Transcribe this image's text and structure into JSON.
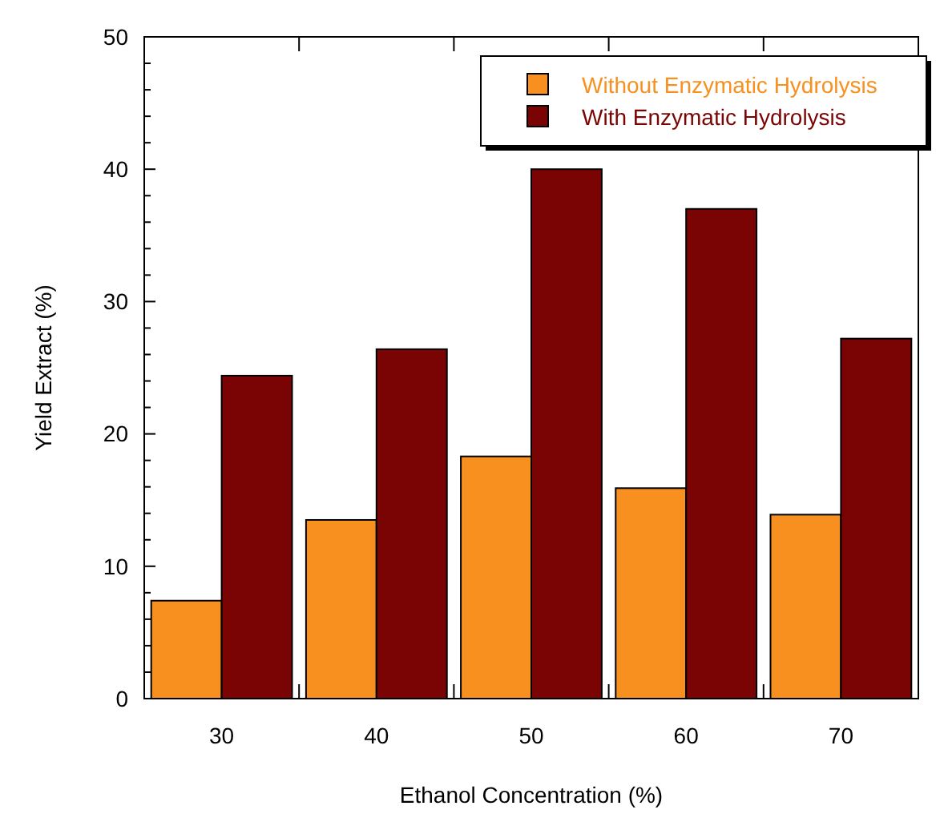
{
  "chart_data": {
    "type": "bar",
    "xlabel": "Ethanol Concentration (%)",
    "ylabel": "Yield Extract (%)",
    "categories": [
      "30",
      "40",
      "50",
      "60",
      "70"
    ],
    "series": [
      {
        "name": "Without Enzymatic Hydrolysis",
        "color": "#f7901e",
        "values": [
          7.4,
          13.5,
          18.3,
          15.9,
          13.9
        ]
      },
      {
        "name": "With Enzymatic Hydrolysis",
        "color": "#7a0404",
        "values": [
          24.4,
          26.4,
          40.0,
          37.0,
          27.2
        ]
      }
    ],
    "ylim": [
      0,
      50
    ],
    "yticks": [
      0,
      10,
      20,
      30,
      40,
      50
    ],
    "grid": false,
    "legend": "top right"
  }
}
